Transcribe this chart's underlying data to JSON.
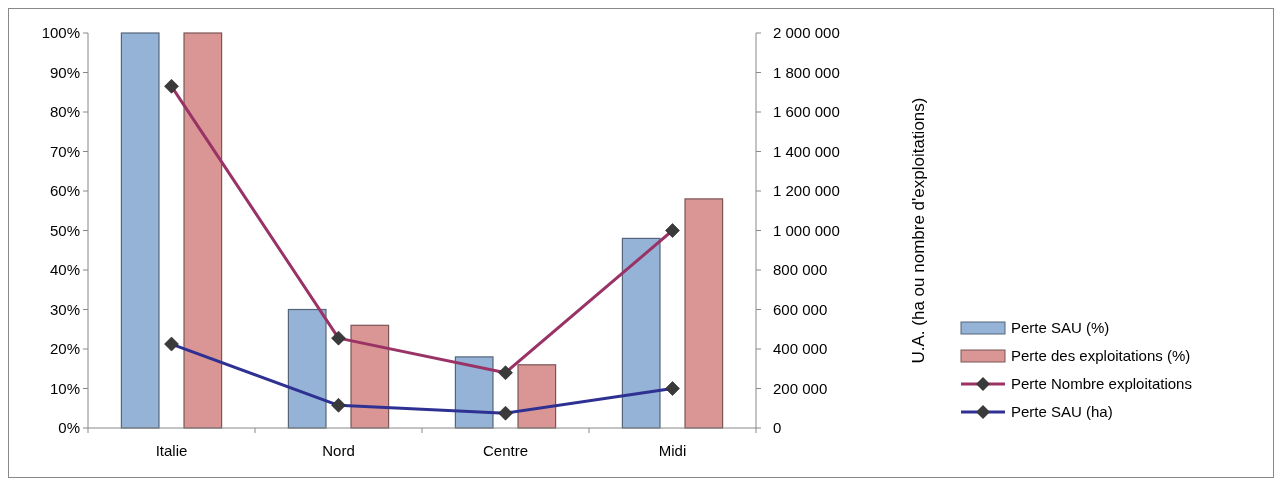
{
  "chart_data": {
    "type": "bar",
    "categories": [
      "Italie",
      "Nord",
      "Centre",
      "Midi"
    ],
    "y2label": "U.A. (ha ou nombre d'exploitations)",
    "series": [
      {
        "name": "Perte SAU (%)",
        "color": "#95b3d7",
        "values": [
          100,
          30,
          18,
          48
        ]
      },
      {
        "name": "Perte des exploitations (%)",
        "color": "#d99694",
        "values": [
          100,
          26,
          16,
          58
        ]
      },
      {
        "name": "Perte Nombre exploitations",
        "type": "line",
        "axis": "y2",
        "color": "#993366",
        "values": [
          1730000,
          455000,
          280000,
          1000000
        ]
      },
      {
        "name": "Perte SAU (ha)",
        "type": "line",
        "axis": "y2",
        "color": "#2e3192",
        "values": [
          425000,
          115000,
          75000,
          200000
        ]
      }
    ],
    "ylim": [
      0,
      100
    ],
    "yticks": [
      {
        "value": 0,
        "label": "0%"
      },
      {
        "value": 10,
        "label": "10%"
      },
      {
        "value": 20,
        "label": "20%"
      },
      {
        "value": 30,
        "label": "30%"
      },
      {
        "value": 40,
        "label": "40%"
      },
      {
        "value": 50,
        "label": "50%"
      },
      {
        "value": 60,
        "label": "60%"
      },
      {
        "value": 70,
        "label": "70%"
      },
      {
        "value": 80,
        "label": "80%"
      },
      {
        "value": 90,
        "label": "90%"
      },
      {
        "value": 100,
        "label": "100%"
      }
    ],
    "y2lim": [
      0,
      2000000
    ],
    "y2ticks": [
      0,
      {
        "value": 200000,
        "label": "200 000"
      },
      {
        "value": 400000,
        "label": "400 000"
      },
      {
        "value": 600000,
        "label": "600 000"
      },
      {
        "value": 800000,
        "label": "800 000"
      },
      {
        "value": 1000000,
        "label": "1 000 000"
      },
      {
        "value": 1200000,
        "label": "1 200 000"
      },
      {
        "value": 1400000,
        "label": "1 400 000"
      },
      {
        "value": 1600000,
        "label": "1 600 000"
      },
      {
        "value": 1800000,
        "label": "1 800 000"
      },
      {
        "value": 2000000,
        "label": "2 000 000"
      }
    ],
    "marker": "diamond",
    "legend": "right"
  }
}
